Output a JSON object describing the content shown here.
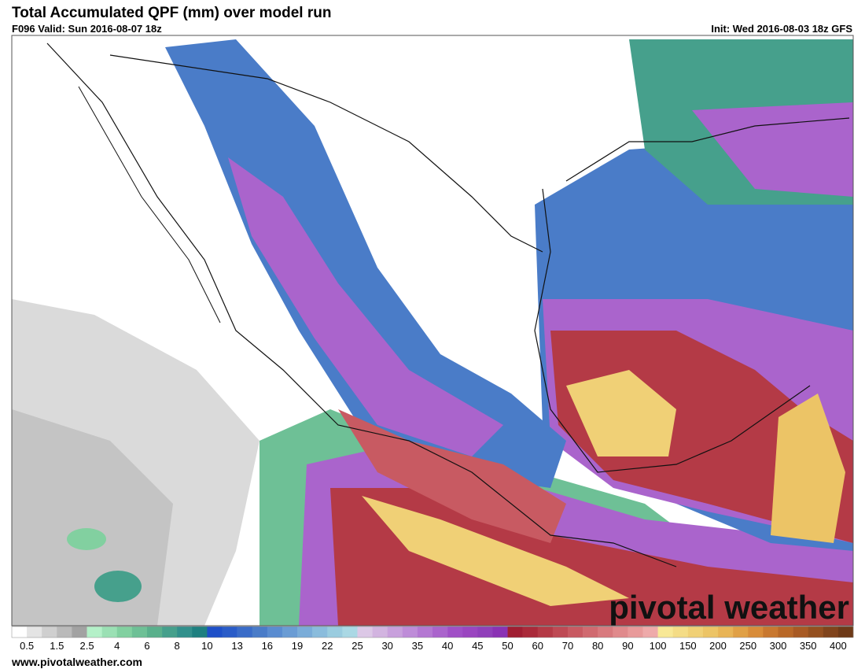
{
  "header": {
    "title": "Total Accumulated QPF (mm) over model run",
    "valid": "F096 Valid: Sun 2016-08-07 18z",
    "init": "Init: Wed 2016-08-03 18z GFS"
  },
  "map": {
    "watermark": "pivotal weather"
  },
  "colorbar": {
    "colors": [
      "#ffffff",
      "#e4e4e4",
      "#cfcfcf",
      "#bababa",
      "#a2a2a2",
      "#b4f0c8",
      "#9be0b4",
      "#82d0a0",
      "#6ec096",
      "#5ab08c",
      "#46a08c",
      "#32908c",
      "#1e8080",
      "#1e50c8",
      "#2a5cc8",
      "#3a6cc8",
      "#4a7cc8",
      "#5a8cd0",
      "#6a9cd4",
      "#7aacd8",
      "#8abcdc",
      "#9accdf",
      "#aad8e4",
      "#dcc8e6",
      "#d2b4e0",
      "#c8a0dc",
      "#be8cd8",
      "#b478d2",
      "#aa64cc",
      "#a050c6",
      "#9a46c0",
      "#9040ba",
      "#8a32b4",
      "#a01e32",
      "#aa2a3a",
      "#b43a46",
      "#be4a54",
      "#c85a62",
      "#d06a70",
      "#d87a7e",
      "#e08a8c",
      "#e89a9a",
      "#eeaaaa",
      "#f8e896",
      "#f4dc86",
      "#f0d076",
      "#ecc466",
      "#e8b456",
      "#e0a046",
      "#d88c3a",
      "#c87830",
      "#b86828",
      "#a85a24",
      "#945020",
      "#80441c",
      "#6e3a18"
    ],
    "labels": [
      "0.5",
      "1.5",
      "2.5",
      "4",
      "6",
      "8",
      "10",
      "13",
      "16",
      "19",
      "22",
      "25",
      "30",
      "35",
      "40",
      "45",
      "50",
      "60",
      "70",
      "80",
      "90",
      "100",
      "150",
      "200",
      "250",
      "300",
      "350",
      "400"
    ]
  },
  "footer": {
    "url": "www.pivotalweather.com"
  }
}
